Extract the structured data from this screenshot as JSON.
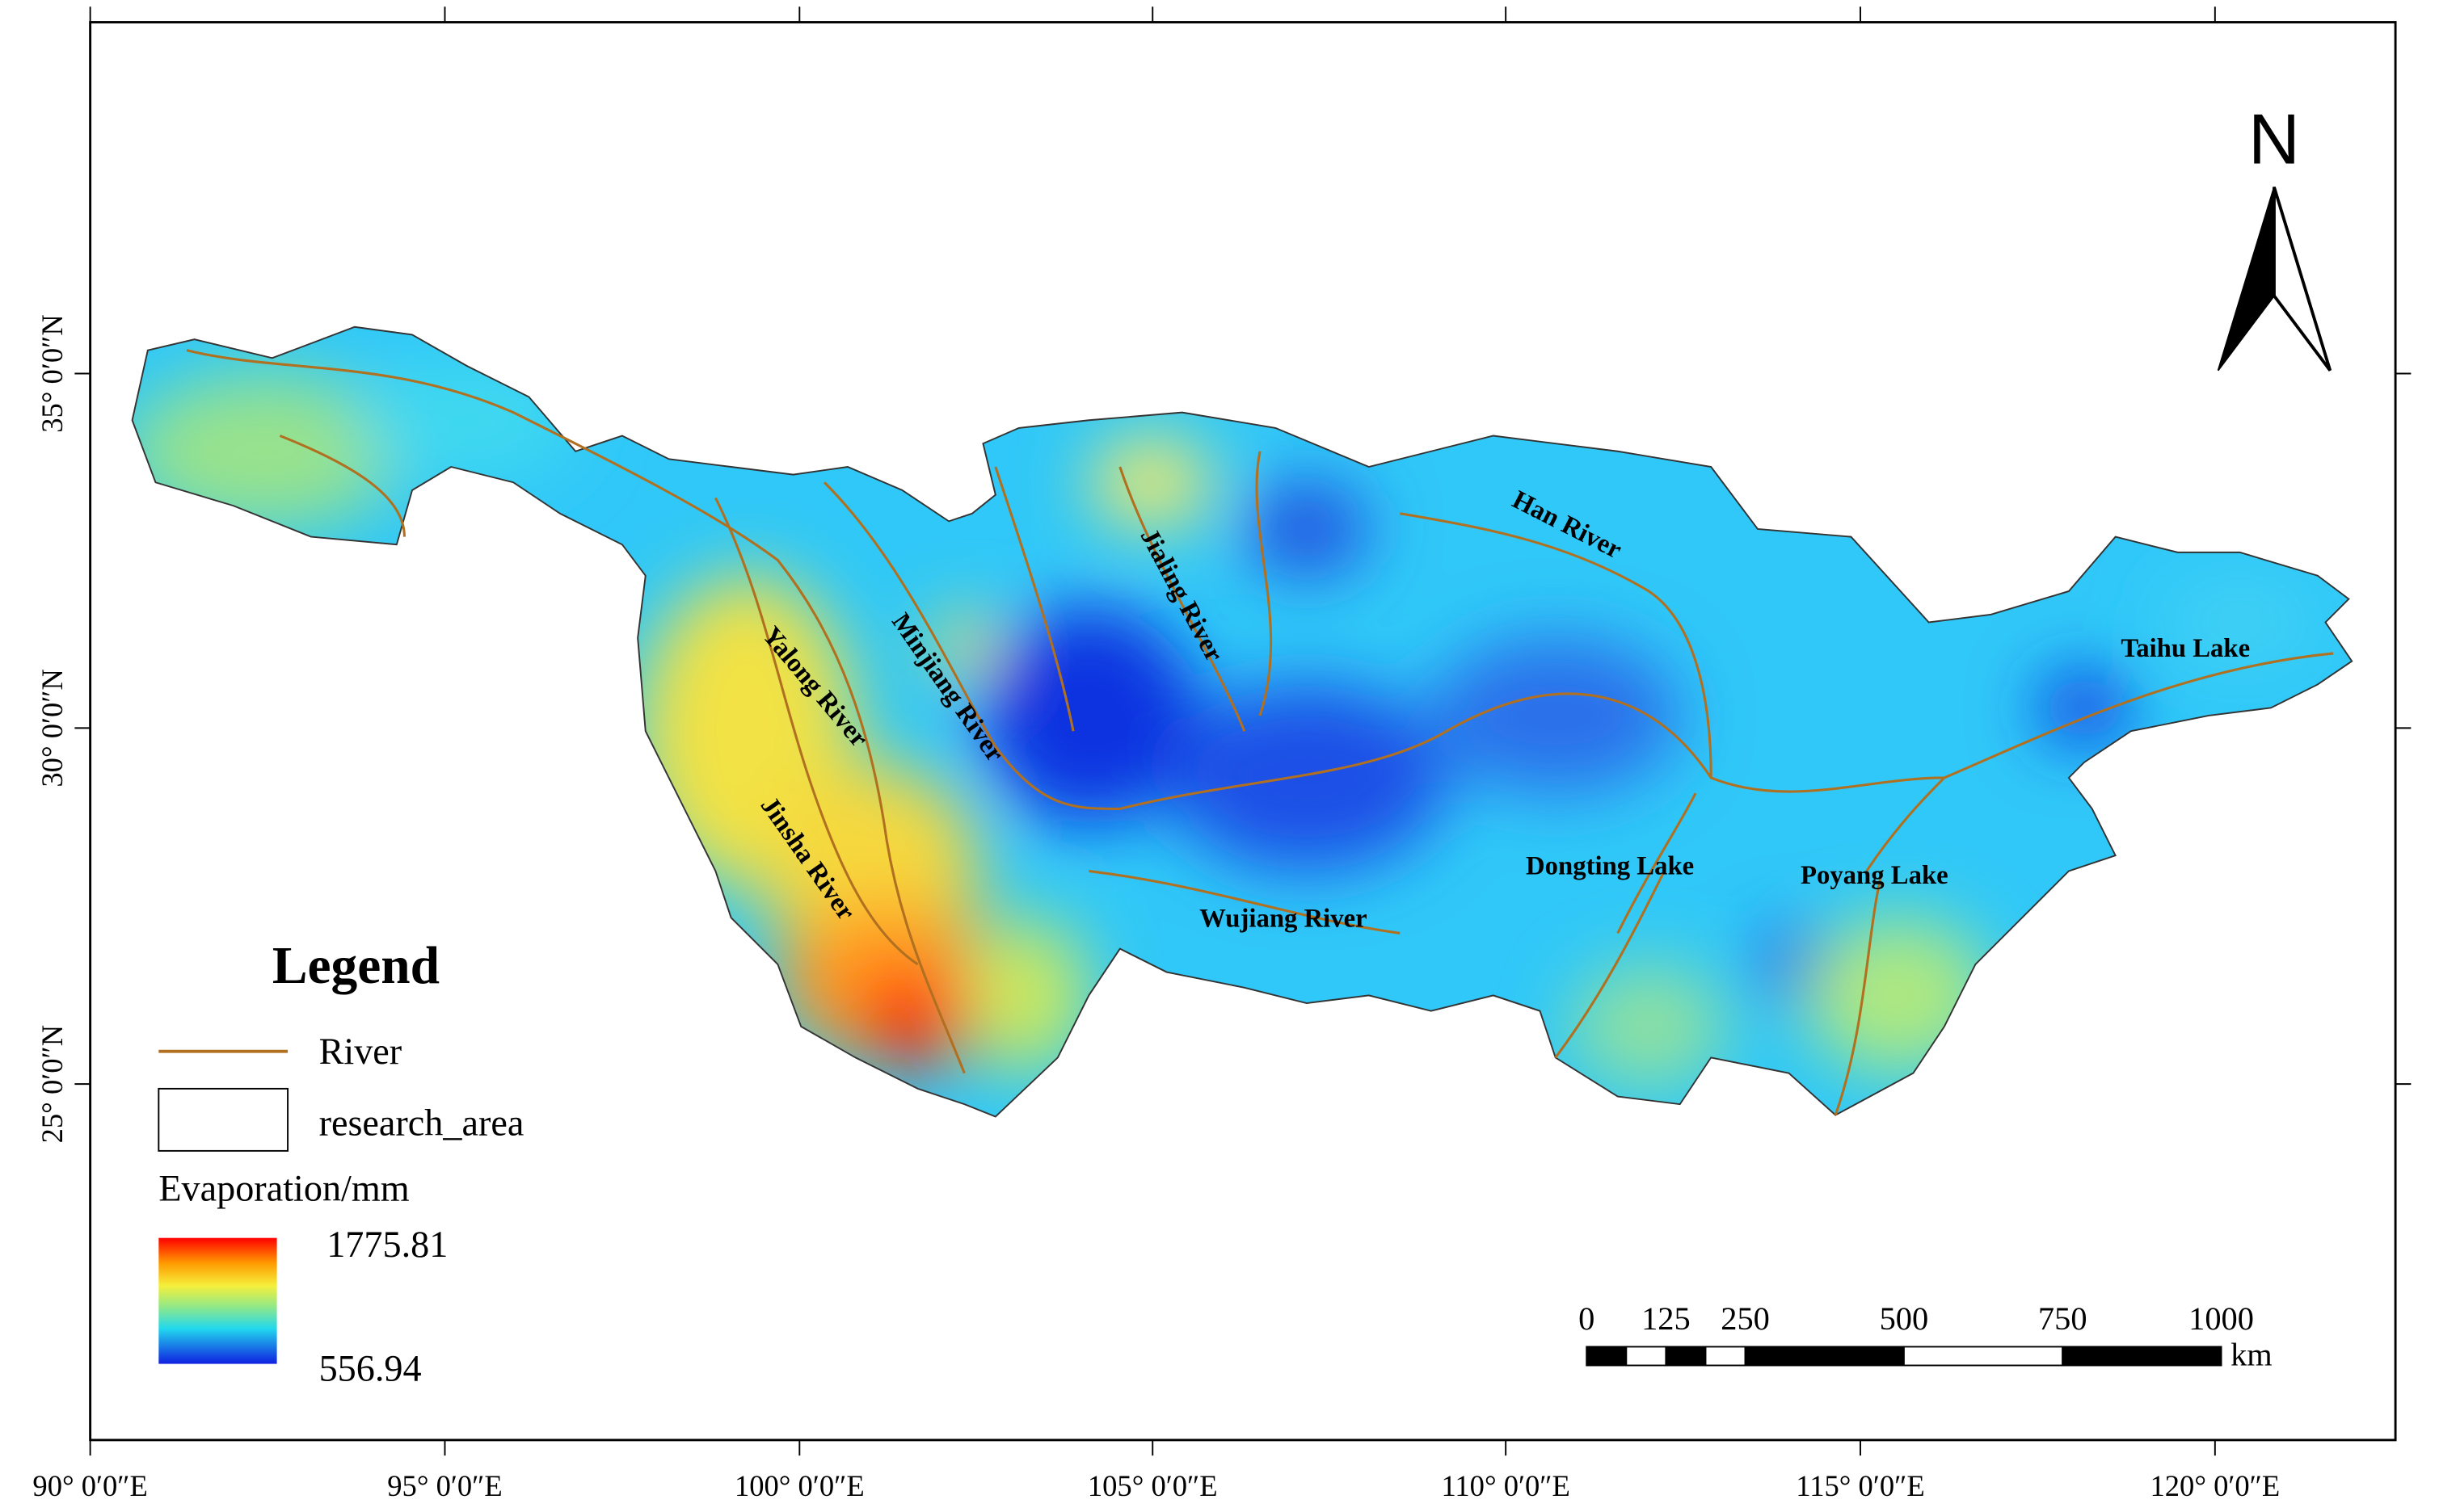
{
  "axes": {
    "x_labels": [
      "90° 0′0″E",
      "95° 0′0″E",
      "100° 0′0″E",
      "105° 0′0″E",
      "110° 0′0″E",
      "115° 0′0″E",
      "120° 0′0″E"
    ],
    "y_labels": [
      "35° 0′0″N",
      "30° 0′0″N",
      "25° 0′0″N"
    ]
  },
  "north": "N",
  "legend": {
    "title": "Legend",
    "river": "River",
    "research_area": "research_area",
    "colorbar_title": "Evaporation/mm",
    "max": 1775.81,
    "min": 556.94
  },
  "scale_bar": {
    "ticks": [
      0,
      125,
      250,
      500,
      750,
      1000
    ],
    "unit": "km"
  },
  "labels": [
    "Han River",
    "Jialing River",
    "Minjiang River",
    "Yalong River",
    "Jinsha River",
    "Wujiang River",
    "Dongting Lake",
    "Poyang Lake",
    "Taihu Lake"
  ]
}
